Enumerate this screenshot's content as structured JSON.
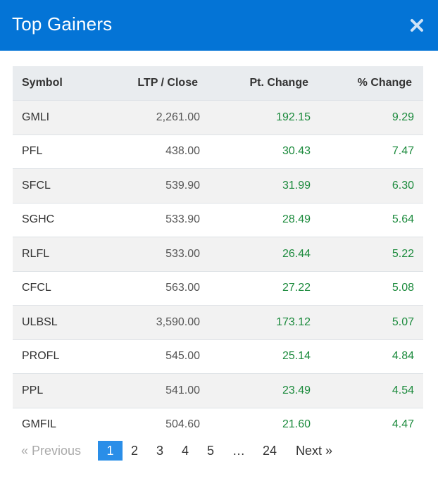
{
  "modal": {
    "title": "Top Gainers",
    "close_icon": "close-icon"
  },
  "table": {
    "headers": {
      "symbol": "Symbol",
      "ltp": "LTP / Close",
      "pt_change": "Pt. Change",
      "pct_change": "% Change"
    },
    "rows": [
      {
        "symbol": "GMLI",
        "ltp": "2,261.00",
        "pt_change": "192.15",
        "pct_change": "9.29"
      },
      {
        "symbol": "PFL",
        "ltp": "438.00",
        "pt_change": "30.43",
        "pct_change": "7.47"
      },
      {
        "symbol": "SFCL",
        "ltp": "539.90",
        "pt_change": "31.99",
        "pct_change": "6.30"
      },
      {
        "symbol": "SGHC",
        "ltp": "533.90",
        "pt_change": "28.49",
        "pct_change": "5.64"
      },
      {
        "symbol": "RLFL",
        "ltp": "533.00",
        "pt_change": "26.44",
        "pct_change": "5.22"
      },
      {
        "symbol": "CFCL",
        "ltp": "563.00",
        "pt_change": "27.22",
        "pct_change": "5.08"
      },
      {
        "symbol": "ULBSL",
        "ltp": "3,590.00",
        "pt_change": "173.12",
        "pct_change": "5.07"
      },
      {
        "symbol": "PROFL",
        "ltp": "545.00",
        "pt_change": "25.14",
        "pct_change": "4.84"
      },
      {
        "symbol": "PPL",
        "ltp": "541.00",
        "pt_change": "23.49",
        "pct_change": "4.54"
      },
      {
        "symbol": "GMFIL",
        "ltp": "504.60",
        "pt_change": "21.60",
        "pct_change": "4.47"
      }
    ]
  },
  "pagination": {
    "prev_label": "« Previous",
    "pages": [
      "1",
      "2",
      "3",
      "4",
      "5"
    ],
    "ellipsis": "…",
    "last_page": "24",
    "next_label": "Next »",
    "current": "1"
  },
  "colors": {
    "header_bg": "#0474d6",
    "positive": "#1b8a3c",
    "active_page": "#2a8ee8"
  }
}
